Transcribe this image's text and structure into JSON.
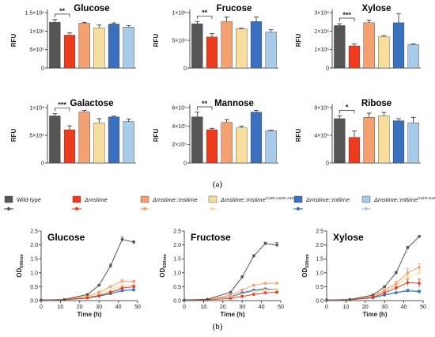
{
  "figure": {
    "panel_a_label": "(a)",
    "panel_b_label": "(b)",
    "legend": [
      {
        "label": "Wild-type",
        "italic": false,
        "sup": "",
        "color": "#555555"
      },
      {
        "label": "Δmstime",
        "italic": true,
        "sup": "",
        "color": "#ee3b1c"
      },
      {
        "label": "Δmstime::mstime",
        "italic": true,
        "sup": "",
        "color": "#f4a070"
      },
      {
        "label": "Δmstime::mstime",
        "italic": true,
        "sup": "G33R-G50R-A91R",
        "color": "#f8de9c"
      },
      {
        "label": "Δmstime::mttime",
        "italic": true,
        "sup": "",
        "color": "#3b6fbf"
      },
      {
        "label": "Δmstime::mttime",
        "italic": true,
        "sup": "G31R-G49R-A89R",
        "color": "#a9cbea"
      }
    ]
  },
  "chart_data": [
    {
      "type": "bar",
      "title": "Glucose",
      "ylabel": "RFU",
      "ylim": [
        0,
        1500000
      ],
      "yticks": [
        {
          "v": 0,
          "t": "0"
        },
        {
          "v": 500000,
          "t": "5×10⁵"
        },
        {
          "v": 1000000,
          "t": "1×10⁶"
        },
        {
          "v": 1500000,
          "t": "1.5×10⁶"
        }
      ],
      "values": [
        1240000,
        890000,
        1210000,
        1090000,
        1190000,
        1110000
      ],
      "errors": [
        70000,
        60000,
        25000,
        80000,
        30000,
        40000
      ],
      "colors": [
        "#555555",
        "#ee3b1c",
        "#f4a070",
        "#f8de9c",
        "#3b6fbf",
        "#a9cbea"
      ],
      "significance": {
        "from": 0,
        "to": 1,
        "label": "**"
      }
    },
    {
      "type": "bar",
      "title": "Frucose",
      "ylabel": "RFU",
      "ylim": [
        0,
        1000000
      ],
      "yticks": [
        {
          "v": 0,
          "t": "0"
        },
        {
          "v": 500000,
          "t": "5×10⁵"
        },
        {
          "v": 1000000,
          "t": "1×10⁶"
        }
      ],
      "values": [
        800000,
        560000,
        840000,
        710000,
        840000,
        650000
      ],
      "errors": [
        40000,
        60000,
        80000,
        10000,
        80000,
        40000
      ],
      "colors": [
        "#555555",
        "#ee3b1c",
        "#f4a070",
        "#f8de9c",
        "#3b6fbf",
        "#a9cbea"
      ],
      "significance": {
        "from": 0,
        "to": 1,
        "label": "**"
      }
    },
    {
      "type": "bar",
      "title": "Xylose",
      "ylabel": "RFU",
      "ylim": [
        0,
        3000000
      ],
      "yticks": [
        {
          "v": 0,
          "t": "0"
        },
        {
          "v": 1000000,
          "t": "1×10⁶"
        },
        {
          "v": 2000000,
          "t": "2×10⁶"
        },
        {
          "v": 3000000,
          "t": "3×10⁶"
        }
      ],
      "values": [
        2300000,
        1200000,
        2450000,
        1700000,
        2450000,
        1270000
      ],
      "errors": [
        100000,
        100000,
        150000,
        60000,
        500000,
        40000
      ],
      "colors": [
        "#555555",
        "#ee3b1c",
        "#f4a070",
        "#f8de9c",
        "#3b6fbf",
        "#a9cbea"
      ],
      "significance": {
        "from": 0,
        "to": 1,
        "label": "***"
      }
    },
    {
      "type": "bar",
      "title": "Galactose",
      "ylabel": "RFU",
      "ylim": [
        0,
        1000000
      ],
      "yticks": [
        {
          "v": 0,
          "t": "0"
        },
        {
          "v": 500000,
          "t": "5×10⁵"
        },
        {
          "v": 1000000,
          "t": "1×10⁶"
        }
      ],
      "values": [
        850000,
        600000,
        920000,
        720000,
        830000,
        750000
      ],
      "errors": [
        40000,
        70000,
        30000,
        80000,
        15000,
        40000
      ],
      "colors": [
        "#555555",
        "#ee3b1c",
        "#f4a070",
        "#f8de9c",
        "#3b6fbf",
        "#a9cbea"
      ],
      "significance": {
        "from": 0,
        "to": 1,
        "label": "***"
      }
    },
    {
      "type": "bar",
      "title": "Mannose",
      "ylabel": "RFU",
      "ylim": [
        0,
        600000
      ],
      "yticks": [
        {
          "v": 0,
          "t": "0"
        },
        {
          "v": 200000,
          "t": "2×10⁵"
        },
        {
          "v": 400000,
          "t": "4×10⁵"
        },
        {
          "v": 600000,
          "t": "6×10⁵"
        }
      ],
      "values": [
        500000,
        360000,
        440000,
        380000,
        550000,
        350000
      ],
      "errors": [
        50000,
        15000,
        30000,
        20000,
        20000,
        5000
      ],
      "colors": [
        "#555555",
        "#ee3b1c",
        "#f4a070",
        "#f8de9c",
        "#3b6fbf",
        "#a9cbea"
      ],
      "significance": {
        "from": 0,
        "to": 1,
        "label": "**"
      }
    },
    {
      "type": "bar",
      "title": "Ribose",
      "ylabel": "RFU",
      "ylim": [
        0,
        800000
      ],
      "yticks": [
        {
          "v": 0,
          "t": "0"
        },
        {
          "v": 400000,
          "t": "4×10⁵"
        },
        {
          "v": 800000,
          "t": "8×10⁵"
        }
      ],
      "values": [
        640000,
        370000,
        660000,
        680000,
        610000,
        580000
      ],
      "errors": [
        40000,
        90000,
        60000,
        50000,
        30000,
        80000
      ],
      "colors": [
        "#555555",
        "#ee3b1c",
        "#f4a070",
        "#f8de9c",
        "#3b6fbf",
        "#a9cbea"
      ],
      "significance": {
        "from": 0,
        "to": 1,
        "label": "*"
      }
    },
    {
      "type": "line",
      "title": "Glucose",
      "xlabel": "Time (h)",
      "ylabel": "OD",
      "ylabel_sub": "600nm",
      "xlim": [
        0,
        50
      ],
      "ylim": [
        0,
        2.5
      ],
      "xticks": [
        0,
        10,
        20,
        30,
        40,
        50
      ],
      "yticks": [
        0.0,
        0.5,
        1.0,
        1.5,
        2.0,
        2.5
      ],
      "x": [
        0,
        12,
        24,
        30,
        36,
        42,
        48
      ],
      "series": [
        {
          "values": [
            0.02,
            0.04,
            0.22,
            0.55,
            1.25,
            2.2,
            2.1
          ],
          "err": [
            0,
            0,
            0.02,
            0.03,
            0.06,
            0.08,
            0.05
          ],
          "color": "#555555"
        },
        {
          "values": [
            0.02,
            0.03,
            0.1,
            0.18,
            0.3,
            0.45,
            0.5
          ],
          "err": [
            0,
            0,
            0.01,
            0.02,
            0.03,
            0.04,
            0.05
          ],
          "color": "#ee3b1c"
        },
        {
          "values": [
            0.02,
            0.04,
            0.16,
            0.3,
            0.5,
            0.7,
            0.68
          ],
          "err": [
            0,
            0,
            0.01,
            0.02,
            0.04,
            0.05,
            0.05
          ],
          "color": "#f4a070"
        },
        {
          "values": [
            0.02,
            0.03,
            0.12,
            0.22,
            0.38,
            0.55,
            0.55
          ],
          "err": [
            0,
            0,
            0.01,
            0.02,
            0.03,
            0.04,
            0.04
          ],
          "color": "#f8de9c"
        },
        {
          "values": [
            0.02,
            0.03,
            0.09,
            0.16,
            0.25,
            0.35,
            0.38
          ],
          "err": [
            0,
            0,
            0.01,
            0.02,
            0.02,
            0.03,
            0.03
          ],
          "color": "#3b6fbf"
        },
        {
          "values": [
            0.02,
            0.03,
            0.1,
            0.18,
            0.28,
            0.4,
            0.42
          ],
          "err": [
            0,
            0,
            0.01,
            0.02,
            0.02,
            0.03,
            0.03
          ],
          "color": "#a9cbea"
        }
      ]
    },
    {
      "type": "line",
      "title": "Fructose",
      "xlabel": "Time (h)",
      "ylabel": "OD",
      "ylabel_sub": "600nm",
      "xlim": [
        0,
        50
      ],
      "ylim": [
        0,
        2.5
      ],
      "xticks": [
        0,
        10,
        20,
        30,
        40,
        50
      ],
      "yticks": [
        0.0,
        0.5,
        1.0,
        1.5,
        2.0,
        2.5
      ],
      "x": [
        0,
        12,
        24,
        30,
        36,
        42,
        48
      ],
      "series": [
        {
          "values": [
            0.02,
            0.05,
            0.3,
            0.85,
            1.6,
            2.05,
            2.0
          ],
          "err": [
            0,
            0,
            0.02,
            0.04,
            0.05,
            0.05,
            0.08
          ],
          "color": "#555555"
        },
        {
          "values": [
            0.02,
            0.03,
            0.08,
            0.15,
            0.22,
            0.28,
            0.3
          ],
          "err": [
            0,
            0,
            0.01,
            0.02,
            0.02,
            0.03,
            0.03
          ],
          "color": "#ee3b1c"
        },
        {
          "values": [
            0.02,
            0.04,
            0.2,
            0.38,
            0.55,
            0.62,
            0.62
          ],
          "err": [
            0,
            0,
            0.01,
            0.02,
            0.03,
            0.03,
            0.03
          ],
          "color": "#f4a070"
        },
        {
          "values": [
            0.02,
            0.03,
            0.12,
            0.22,
            0.32,
            0.38,
            0.4
          ],
          "err": [
            0,
            0,
            0.01,
            0.02,
            0.02,
            0.03,
            0.03
          ],
          "color": "#f8de9c"
        },
        {
          "values": [
            0.02,
            0.03,
            0.14,
            0.28,
            0.38,
            0.42,
            0.4
          ],
          "err": [
            0,
            0,
            0.01,
            0.02,
            0.02,
            0.03,
            0.03
          ],
          "color": "#3b6fbf"
        },
        {
          "values": [
            0.02,
            0.03,
            0.13,
            0.25,
            0.35,
            0.4,
            0.38
          ],
          "err": [
            0,
            0,
            0.01,
            0.02,
            0.02,
            0.03,
            0.03
          ],
          "color": "#a9cbea"
        }
      ]
    },
    {
      "type": "line",
      "title": "Xylose",
      "xlabel": "Time (h)",
      "ylabel": "OD",
      "ylabel_sub": "600nm",
      "xlim": [
        0,
        50
      ],
      "ylim": [
        0,
        2.5
      ],
      "xticks": [
        0,
        10,
        20,
        30,
        40,
        50
      ],
      "yticks": [
        0.0,
        0.5,
        1.0,
        1.5,
        2.0,
        2.5
      ],
      "x": [
        0,
        12,
        24,
        30,
        36,
        42,
        48
      ],
      "series": [
        {
          "values": [
            0.02,
            0.04,
            0.2,
            0.5,
            1.0,
            1.9,
            2.3
          ],
          "err": [
            0,
            0,
            0.02,
            0.03,
            0.05,
            0.05,
            0.04
          ],
          "color": "#555555"
        },
        {
          "values": [
            0.02,
            0.03,
            0.12,
            0.28,
            0.45,
            0.65,
            0.62
          ],
          "err": [
            0,
            0,
            0.01,
            0.03,
            0.06,
            0.12,
            0.15
          ],
          "color": "#ee3b1c"
        },
        {
          "values": [
            0.02,
            0.04,
            0.18,
            0.38,
            0.62,
            1.0,
            1.2
          ],
          "err": [
            0,
            0,
            0.02,
            0.04,
            0.08,
            0.15,
            0.12
          ],
          "color": "#f4a070"
        },
        {
          "values": [
            0.02,
            0.03,
            0.15,
            0.32,
            0.55,
            0.85,
            1.0
          ],
          "err": [
            0,
            0,
            0.02,
            0.03,
            0.06,
            0.1,
            0.1
          ],
          "color": "#f8de9c"
        },
        {
          "values": [
            0.02,
            0.03,
            0.1,
            0.2,
            0.28,
            0.35,
            0.32
          ],
          "err": [
            0,
            0,
            0.01,
            0.02,
            0.03,
            0.04,
            0.04
          ],
          "color": "#3b6fbf"
        },
        {
          "values": [
            0.02,
            0.03,
            0.12,
            0.22,
            0.3,
            0.38,
            0.36
          ],
          "err": [
            0,
            0,
            0.01,
            0.02,
            0.03,
            0.04,
            0.04
          ],
          "color": "#a9cbea"
        }
      ]
    }
  ]
}
